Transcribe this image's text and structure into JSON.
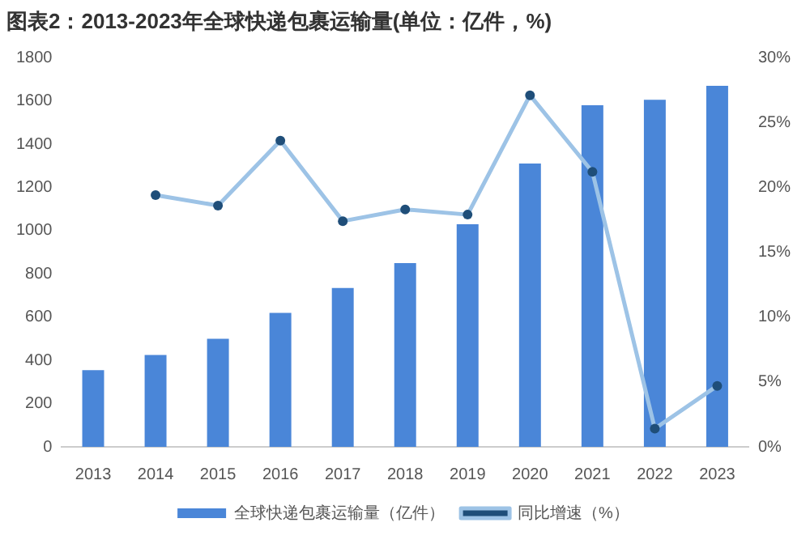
{
  "chart_data": {
    "type": "bar",
    "title": "图表2：2013-2023年全球快递包裹运输量(单位：亿件，%)",
    "categories": [
      "2013",
      "2014",
      "2015",
      "2016",
      "2017",
      "2018",
      "2019",
      "2020",
      "2021",
      "2022",
      "2023"
    ],
    "series": [
      {
        "name": "全球快递包裹运输量（亿件）",
        "color": "#4a86d8",
        "values": [
          355,
          425,
          500,
          620,
          735,
          850,
          1030,
          1310,
          1580,
          1605,
          1670
        ]
      },
      {
        "name": "同比增速（%）",
        "type": "line",
        "axis": "y2",
        "color": "#9dc3e6",
        "values": [
          null,
          19.4,
          18.6,
          23.6,
          17.4,
          18.3,
          17.9,
          27.1,
          21.2,
          1.4,
          4.7
        ]
      }
    ],
    "ylim": [
      0,
      1800
    ],
    "yticks": [
      0,
      200,
      400,
      600,
      800,
      1000,
      1200,
      1400,
      1600,
      1800
    ],
    "y2lim": [
      0,
      30
    ],
    "y2ticks": [
      {
        "value": 0,
        "label": "0%"
      },
      {
        "value": 5,
        "label": "5%"
      },
      {
        "value": 10,
        "label": "10%"
      },
      {
        "value": 15,
        "label": "15%"
      },
      {
        "value": 20,
        "label": "20%"
      },
      {
        "value": 25,
        "label": "25%"
      },
      {
        "value": 30,
        "label": "30%"
      }
    ],
    "grid": false,
    "legend": "bottom",
    "marker": "circle"
  }
}
